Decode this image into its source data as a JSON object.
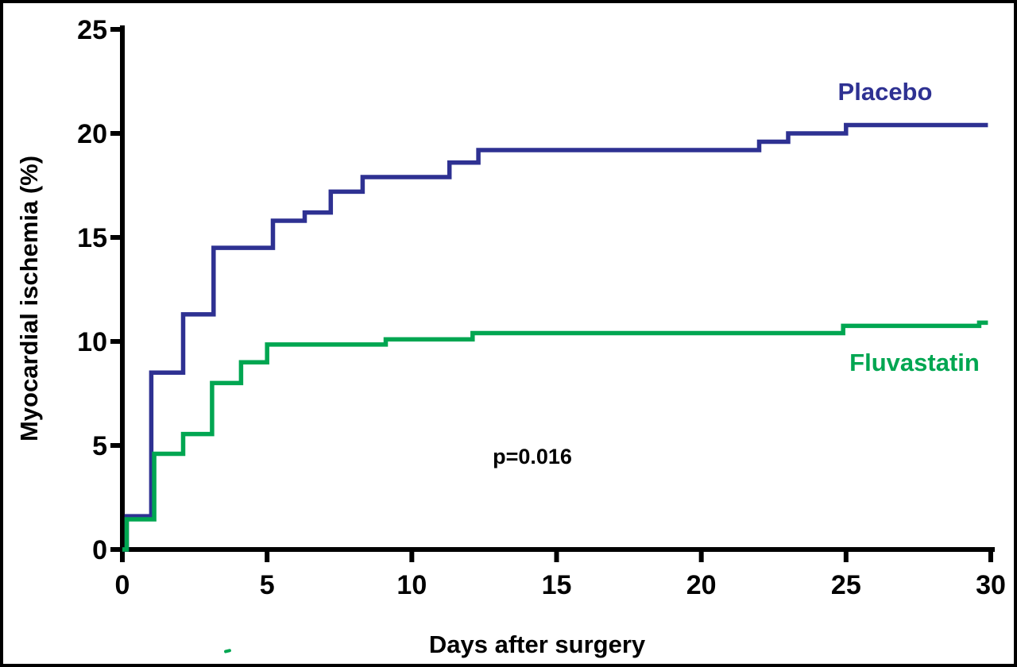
{
  "figure": {
    "background_color": "#ffffff",
    "border_color": "#000000"
  },
  "colors": {
    "placebo": "#2e3192",
    "fluvastatin": "#00a651",
    "axis": "#000000",
    "text": "#000000"
  },
  "chart_data": {
    "type": "line",
    "subtype": "kaplan-meier-cumulative-incidence-step",
    "title": "",
    "xlabel": "Days after surgery",
    "ylabel": "Myocardial ischemia (%)",
    "xlim": [
      0,
      30
    ],
    "ylim": [
      0,
      25
    ],
    "x_ticks": [
      0,
      5,
      10,
      15,
      20,
      25,
      30
    ],
    "y_ticks": [
      0,
      5,
      10,
      15,
      20,
      25
    ],
    "grid": false,
    "legend_position": "inline-right-of-curves",
    "annotation": "p=0.016",
    "series": [
      {
        "name": "Placebo",
        "color": "#2e3192",
        "points_note": "each point = [day of jump, cumulative % after jump], step curve",
        "points": [
          [
            0,
            0
          ],
          [
            0.15,
            1.6
          ],
          [
            1.0,
            8.5
          ],
          [
            2.1,
            11.3
          ],
          [
            3.15,
            14.5
          ],
          [
            5.2,
            15.8
          ],
          [
            6.3,
            16.2
          ],
          [
            7.2,
            17.2
          ],
          [
            8.3,
            17.9
          ],
          [
            11.3,
            18.6
          ],
          [
            12.3,
            19.2
          ],
          [
            22.0,
            19.6
          ],
          [
            23.0,
            20.0
          ],
          [
            25.0,
            20.4
          ],
          [
            29.9,
            20.4
          ]
        ]
      },
      {
        "name": "Fluvastatin",
        "color": "#00a651",
        "points_note": "each point = [day of jump, cumulative % after jump], step curve",
        "points": [
          [
            0,
            0
          ],
          [
            0.15,
            1.45
          ],
          [
            1.1,
            4.6
          ],
          [
            2.1,
            5.55
          ],
          [
            3.1,
            8.0
          ],
          [
            4.1,
            9.0
          ],
          [
            5.0,
            9.85
          ],
          [
            9.1,
            10.1
          ],
          [
            12.1,
            10.4
          ],
          [
            24.9,
            10.75
          ],
          [
            29.6,
            10.9
          ],
          [
            29.9,
            10.9
          ]
        ]
      }
    ]
  }
}
